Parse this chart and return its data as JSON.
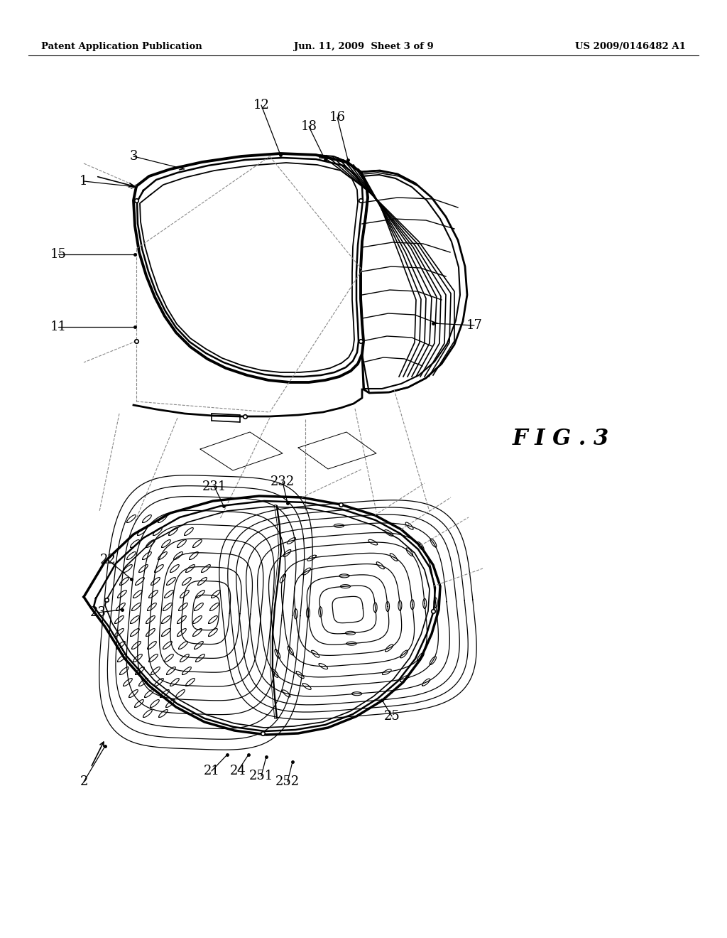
{
  "bg_color": "#ffffff",
  "header_left": "Patent Application Publication",
  "header_center": "Jun. 11, 2009  Sheet 3 of 9",
  "header_right": "US 2009/0146482 A1",
  "figure_label": "F I G . 3",
  "upper_labels": [
    [
      "1",
      118,
      255
    ],
    [
      "3",
      188,
      220
    ],
    [
      "12",
      368,
      148
    ],
    [
      "18",
      435,
      178
    ],
    [
      "16",
      475,
      165
    ],
    [
      "15",
      82,
      358
    ],
    [
      "11",
      82,
      460
    ],
    [
      "17",
      668,
      458
    ]
  ],
  "lower_labels": [
    [
      "2",
      118,
      1100
    ],
    [
      "22",
      152,
      788
    ],
    [
      "23",
      138,
      862
    ],
    [
      "231",
      302,
      685
    ],
    [
      "232",
      398,
      678
    ],
    [
      "21",
      298,
      1085
    ],
    [
      "24",
      335,
      1085
    ],
    [
      "251",
      368,
      1092
    ],
    [
      "252",
      405,
      1100
    ],
    [
      "25",
      552,
      1008
    ]
  ]
}
